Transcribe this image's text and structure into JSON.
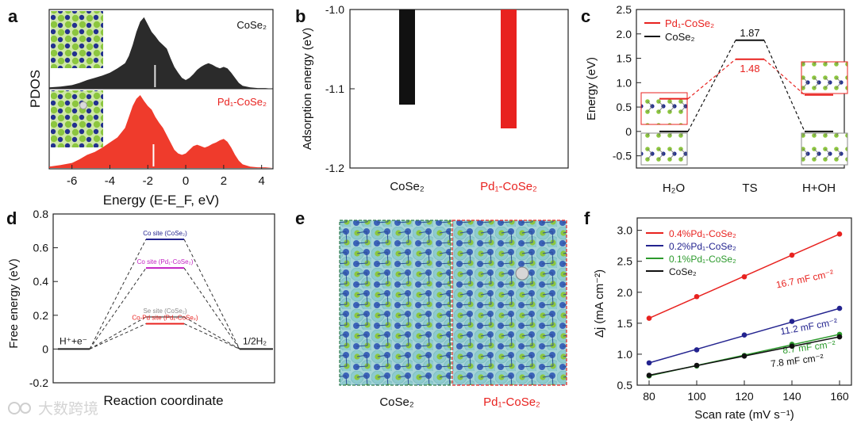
{
  "watermark": "大数跨境",
  "colors": {
    "red": "#e8221f",
    "black": "#111111",
    "blue": "#23238f",
    "green": "#2c9a2c",
    "magenta": "#c21fc2",
    "gray": "#9a9a9a",
    "pdosBlack": "#2b2b2b",
    "pdosRed": "#ef3b2c"
  },
  "chart_data": [
    {
      "panel": "a",
      "type": "area",
      "xlabel": "Energy (E-E_F, eV)",
      "ylabel": "PDOS",
      "xlim": [
        -7.2,
        4.6
      ],
      "xticks": [
        -6,
        -4,
        -2,
        0,
        2,
        4
      ],
      "series": [
        {
          "name": "CoSe2",
          "color": "#2b2b2b",
          "d_band_center": -1.62,
          "x": [
            -7.2,
            -6.6,
            -6.0,
            -5.6,
            -5.2,
            -4.8,
            -4.4,
            -4.0,
            -3.6,
            -3.2,
            -3.0,
            -2.8,
            -2.6,
            -2.4,
            -2.2,
            -2.0,
            -1.8,
            -1.6,
            -1.4,
            -1.2,
            -1.0,
            -0.8,
            -0.6,
            -0.4,
            -0.2,
            0.0,
            0.2,
            0.4,
            0.6,
            0.8,
            1.0,
            1.2,
            1.4,
            1.6,
            1.8,
            2.0,
            2.2,
            2.4,
            2.6,
            2.8,
            3.0,
            3.4,
            3.8,
            4.2,
            4.6
          ],
          "y": [
            0.02,
            0.03,
            0.05,
            0.08,
            0.12,
            0.15,
            0.18,
            0.22,
            0.28,
            0.35,
            0.45,
            0.6,
            0.78,
            0.92,
            0.98,
            0.88,
            0.78,
            0.72,
            0.65,
            0.6,
            0.55,
            0.42,
            0.3,
            0.22,
            0.15,
            0.12,
            0.15,
            0.2,
            0.26,
            0.3,
            0.33,
            0.35,
            0.33,
            0.3,
            0.28,
            0.3,
            0.28,
            0.22,
            0.15,
            0.08,
            0.04,
            0.02,
            0.01,
            0.01,
            0.0
          ]
        },
        {
          "name": "Pd1-CoSe2",
          "color": "#ef3b2c",
          "d_band_center": -1.7,
          "x": [
            -7.2,
            -6.6,
            -6.0,
            -5.6,
            -5.2,
            -4.8,
            -4.4,
            -4.0,
            -3.6,
            -3.2,
            -3.0,
            -2.8,
            -2.6,
            -2.4,
            -2.2,
            -2.0,
            -1.8,
            -1.6,
            -1.4,
            -1.2,
            -1.0,
            -0.8,
            -0.6,
            -0.4,
            -0.2,
            0.0,
            0.2,
            0.4,
            0.6,
            0.8,
            1.0,
            1.2,
            1.4,
            1.6,
            1.8,
            2.0,
            2.2,
            2.4,
            2.6,
            2.8,
            3.0,
            3.4,
            3.8,
            4.2,
            4.6
          ],
          "y": [
            0.02,
            0.04,
            0.07,
            0.12,
            0.18,
            0.22,
            0.28,
            0.35,
            0.42,
            0.55,
            0.7,
            0.85,
            0.95,
            1.0,
            0.92,
            0.85,
            0.8,
            0.7,
            0.62,
            0.55,
            0.45,
            0.35,
            0.25,
            0.2,
            0.18,
            0.2,
            0.25,
            0.3,
            0.32,
            0.3,
            0.28,
            0.3,
            0.33,
            0.35,
            0.38,
            0.4,
            0.36,
            0.28,
            0.18,
            0.1,
            0.05,
            0.02,
            0.01,
            0.01,
            0.0
          ]
        }
      ],
      "labels": [
        "CoSe₂",
        "Pd₁-CoSe₂"
      ]
    },
    {
      "panel": "b",
      "type": "bar",
      "ylabel": "Adsorption energy (eV)",
      "ylim": [
        -1.2,
        -1.0
      ],
      "yticks": [
        "-1.0",
        "-1.1",
        "-1.2"
      ],
      "categories": [
        "CoSe₂",
        "Pd₁-CoSe₂"
      ],
      "values": [
        -1.12,
        -1.15
      ],
      "colors": [
        "#111111",
        "#e8221f"
      ]
    },
    {
      "panel": "c",
      "type": "line",
      "ylabel": "Energy (eV)",
      "ylim": [
        -0.75,
        2.5
      ],
      "yticks": [
        "-0.5",
        "0",
        "0.5",
        "1.0",
        "1.5",
        "2.0",
        "2.5"
      ],
      "categories": [
        "H₂O",
        "TS",
        "H+OH"
      ],
      "series": [
        {
          "name": "Pd₁-CoSe₂",
          "color": "#e8221f",
          "values": [
            0.67,
            1.48,
            0.75
          ]
        },
        {
          "name": "CoSe₂",
          "color": "#111111",
          "values": [
            0.0,
            1.87,
            0.0
          ]
        }
      ],
      "annotations": [
        "1.87",
        "1.48"
      ]
    },
    {
      "panel": "d",
      "type": "line",
      "xlabel": "Reaction coordinate",
      "ylabel": "Free energy (eV)",
      "ylim": [
        -0.2,
        0.8
      ],
      "yticks": [
        "-0.2",
        "0",
        "0.2",
        "0.4",
        "0.6",
        "0.8"
      ],
      "states": [
        "H⁺+e⁻",
        "1/2H₂"
      ],
      "series": [
        {
          "name": "Co site (CoSe₂)",
          "color": "#23238f",
          "value": 0.65
        },
        {
          "name": "Co site (Pd₁-CoSe₂)",
          "color": "#c21fc2",
          "value": 0.48
        },
        {
          "name": "Se site (CoSe₂)",
          "color": "#8a8a8a",
          "value": 0.19
        },
        {
          "name": "Co-Pd site (Pd₁-CoSe₂)",
          "color": "#e8221f",
          "value": 0.15
        }
      ]
    },
    {
      "panel": "f",
      "type": "scatter",
      "xlabel": "Scan rate (mV s⁻¹)",
      "ylabel": "Δj (mA cm⁻²)",
      "xlim": [
        75,
        165
      ],
      "ylim": [
        0.5,
        3.2
      ],
      "xticks": [
        "80",
        "100",
        "120",
        "140",
        "160"
      ],
      "yticks": [
        "0.5",
        "1.0",
        "1.5",
        "2.0",
        "2.5",
        "3.0"
      ],
      "x": [
        80,
        100,
        120,
        140,
        160
      ],
      "series": [
        {
          "name": "0.4%Pd₁-CoSe₂",
          "color": "#e8221f",
          "values": [
            1.58,
            1.93,
            2.25,
            2.6,
            2.94
          ],
          "slope_label": "16.7 mF cm⁻²"
        },
        {
          "name": "0.2%Pd₁-CoSe₂",
          "color": "#23238f",
          "values": [
            0.86,
            1.07,
            1.31,
            1.53,
            1.74
          ],
          "slope_label": "11.2 mF cm⁻²"
        },
        {
          "name": "0.1%Pd₁-CoSe₂",
          "color": "#2c9a2c",
          "values": [
            0.65,
            0.81,
            0.98,
            1.16,
            1.32
          ],
          "slope_label": "8.7 mF cm⁻²"
        },
        {
          "name": "CoSe₂",
          "color": "#111111",
          "values": [
            0.66,
            0.82,
            0.97,
            1.13,
            1.28
          ],
          "slope_label": "7.8 mF cm⁻²"
        }
      ]
    }
  ],
  "panels": {
    "a": {
      "letter": "a",
      "label_top": "CoSe₂",
      "label_bottom": "Pd₁-CoSe₂"
    },
    "b": {
      "letter": "b"
    },
    "c": {
      "letter": "c"
    },
    "d": {
      "letter": "d"
    },
    "e": {
      "letter": "e",
      "left_label": "CoSe₂",
      "right_label": "Pd₁-CoSe₂"
    },
    "f": {
      "letter": "f"
    }
  }
}
